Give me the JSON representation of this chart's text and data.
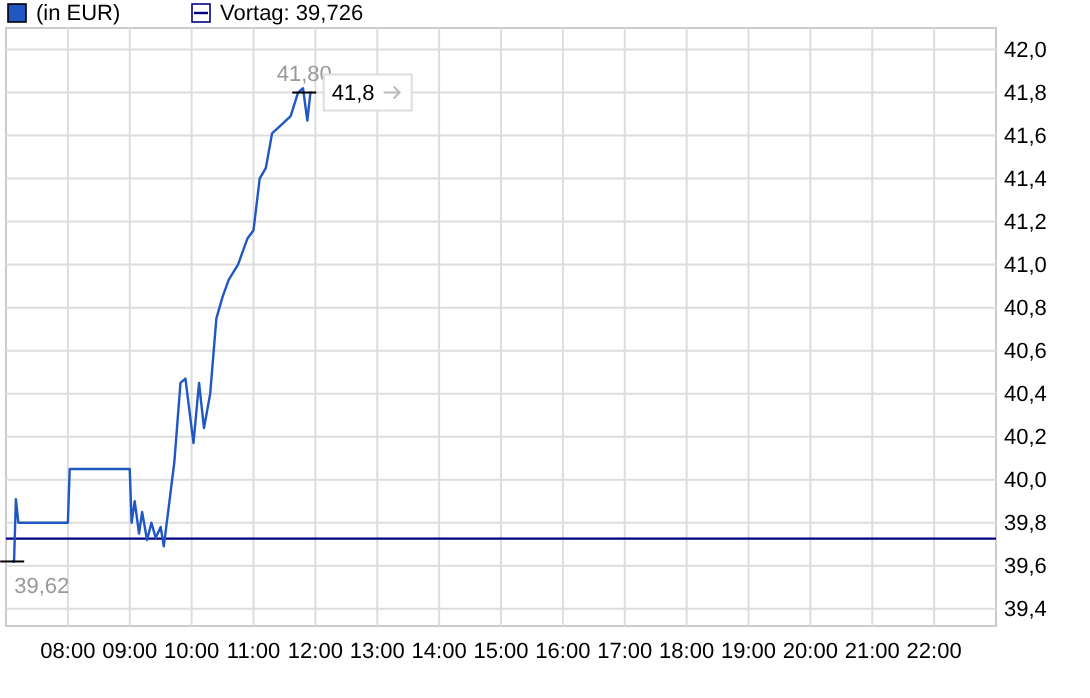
{
  "chart_data": {
    "type": "line",
    "legend": "top",
    "grid": true,
    "line_style": "solid",
    "xlim": [
      7,
      23
    ],
    "ylim": [
      39.32,
      42.1
    ],
    "xticks": [
      {
        "value": 8,
        "label": "08:00"
      },
      {
        "value": 9,
        "label": "09:00"
      },
      {
        "value": 10,
        "label": "10:00"
      },
      {
        "value": 11,
        "label": "11:00"
      },
      {
        "value": 12,
        "label": "12:00"
      },
      {
        "value": 13,
        "label": "13:00"
      },
      {
        "value": 14,
        "label": "14:00"
      },
      {
        "value": 15,
        "label": "15:00"
      },
      {
        "value": 16,
        "label": "16:00"
      },
      {
        "value": 17,
        "label": "17:00"
      },
      {
        "value": 18,
        "label": "18:00"
      },
      {
        "value": 19,
        "label": "19:00"
      },
      {
        "value": 20,
        "label": "20:00"
      },
      {
        "value": 21,
        "label": "21:00"
      },
      {
        "value": 22,
        "label": "22:00"
      }
    ],
    "yticks": [
      {
        "value": 39.4,
        "label": "39,4"
      },
      {
        "value": 39.6,
        "label": "39,6"
      },
      {
        "value": 39.8,
        "label": "39,8"
      },
      {
        "value": 40.0,
        "label": "40,0"
      },
      {
        "value": 40.2,
        "label": "40,2"
      },
      {
        "value": 40.4,
        "label": "40,4"
      },
      {
        "value": 40.6,
        "label": "40,6"
      },
      {
        "value": 40.8,
        "label": "40,8"
      },
      {
        "value": 41.0,
        "label": "41,0"
      },
      {
        "value": 41.2,
        "label": "41,2"
      },
      {
        "value": 41.4,
        "label": "41,4"
      },
      {
        "value": 41.6,
        "label": "41,6"
      },
      {
        "value": 41.8,
        "label": "41,8"
      },
      {
        "value": 42.0,
        "label": "42,0"
      }
    ],
    "x": [
      7.1,
      7.13,
      7.16,
      7.2,
      7.25,
      8.0,
      8.03,
      8.1,
      9.0,
      9.03,
      9.08,
      9.15,
      9.2,
      9.28,
      9.35,
      9.42,
      9.5,
      9.55,
      9.62,
      9.72,
      9.82,
      9.9,
      10.03,
      10.12,
      10.2,
      10.3,
      10.4,
      10.5,
      10.6,
      10.75,
      10.9,
      11.0,
      11.1,
      11.2,
      11.3,
      11.45,
      11.6,
      11.72,
      11.8,
      11.87,
      11.92,
      11.94
    ],
    "series": [
      {
        "name": "(in EUR)",
        "color": "#1f57c3",
        "values": [
          39.62,
          39.62,
          39.91,
          39.8,
          39.8,
          39.8,
          40.05,
          40.05,
          40.05,
          39.8,
          39.9,
          39.75,
          39.85,
          39.72,
          39.8,
          39.73,
          39.78,
          39.69,
          39.85,
          40.08,
          40.45,
          40.47,
          40.17,
          40.45,
          40.24,
          40.4,
          40.75,
          40.85,
          40.93,
          41.0,
          41.12,
          41.16,
          41.4,
          41.45,
          41.61,
          41.65,
          41.69,
          41.8,
          41.82,
          41.67,
          41.8,
          41.8
        ]
      }
    ],
    "ref_lines": [
      {
        "axis": "y",
        "value": 39.726,
        "label": "Vortag: 39,726",
        "color": "#000080"
      }
    ],
    "tick_labels": "xy",
    "annotations": [
      {
        "text": "41,80",
        "x": 11.82,
        "y": 41.8
      },
      {
        "text": "39,62",
        "x": 7.1,
        "y": 39.62
      },
      {
        "text": "41,8",
        "x": 11.94,
        "y": 41.8
      }
    ]
  }
}
